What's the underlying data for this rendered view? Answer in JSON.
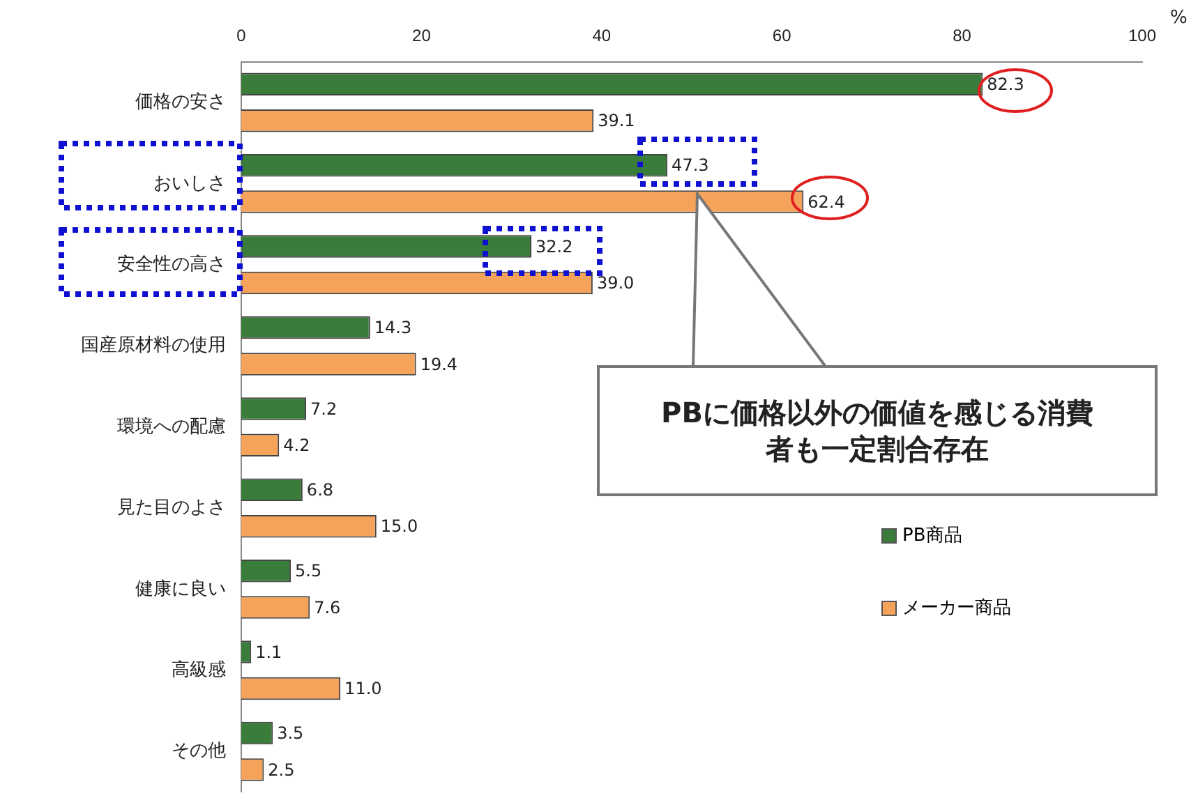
{
  "chart_data": {
    "type": "bar",
    "orientation": "horizontal",
    "xlabel": "%",
    "categories": [
      "価格の安さ",
      "おいしさ",
      "安全性の高さ",
      "国産原材料の使用",
      "環境への配慮",
      "見た目のよさ",
      "健康に良い",
      "高級感",
      "その他"
    ],
    "series": [
      {
        "name": "PB商品",
        "color": "#3a7d3a",
        "values": [
          82.3,
          47.3,
          32.2,
          14.3,
          7.2,
          6.8,
          5.5,
          1.1,
          3.5
        ],
        "value_labels": [
          "82.3",
          "47.3",
          "32.2",
          "14.3",
          "7.2",
          "6.8",
          "5.5",
          "1.1",
          "3.5"
        ]
      },
      {
        "name": "メーカー商品",
        "color": "#f5a25a",
        "values": [
          39.1,
          62.4,
          39.0,
          19.4,
          4.2,
          15.0,
          7.6,
          11.0,
          2.5
        ],
        "value_labels": [
          "39.1",
          "62.4",
          "39.0",
          "19.4",
          "4.2",
          "15.0",
          "7.6",
          "11.0",
          "2.5"
        ]
      }
    ],
    "xlim": [
      0,
      100
    ],
    "xticks": [
      0,
      20,
      40,
      60,
      80,
      100
    ],
    "grid": false,
    "legend": "right",
    "annotations": [
      "PBに価格以外の価値を感じる消費者も一定割合存在"
    ]
  }
}
